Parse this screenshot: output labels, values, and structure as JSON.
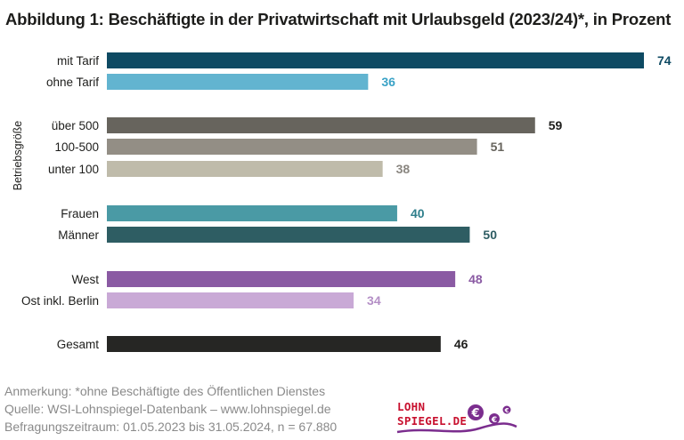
{
  "title": "Abbildung 1:  Beschäftigte in der Privatwirtschaft mit Urlaubsgeld (2023/24)*, in Prozent",
  "chart_data": {
    "type": "bar",
    "orientation": "horizontal",
    "xlim": [
      0,
      74
    ],
    "group_axis_label": "Betriebsgröße",
    "bars": [
      {
        "label": "mit Tarif",
        "value": 74,
        "color": "#0e4a63",
        "labelColor": "#0e4a63"
      },
      {
        "label": "ohne Tarif",
        "value": 36,
        "color": "#62b4d0",
        "labelColor": "#3aa2c6"
      },
      {
        "label": "über 500",
        "value": 59,
        "color": "#67645d",
        "labelColor": "#1d1d1b"
      },
      {
        "label": "100-500",
        "value": 51,
        "color": "#938e85",
        "labelColor": "#67645d"
      },
      {
        "label": "unter 100",
        "value": 38,
        "color": "#bfbbaa",
        "labelColor": "#8a8680"
      },
      {
        "label": "Frauen",
        "value": 40,
        "color": "#4a9aa5",
        "labelColor": "#2f7f8c"
      },
      {
        "label": "Männer",
        "value": 50,
        "color": "#2e5d63",
        "labelColor": "#2e5d63"
      },
      {
        "label": "West",
        "value": 48,
        "color": "#8a5aa3",
        "labelColor": "#8a5aa3"
      },
      {
        "label": "Ost inkl. Berlin",
        "value": 34,
        "color": "#c9a9d6",
        "labelColor": "#b48fc6"
      },
      {
        "label": "Gesamt",
        "value": 46,
        "color": "#262624",
        "labelColor": "#1d1d1b"
      }
    ]
  },
  "footer": {
    "note": "Anmerkung: *ohne Beschäftigte des Öffentlichen Dienstes",
    "source": "Quelle:  WSI-Lohnspiegel-Datenbank – www.lohnspiegel.de",
    "period": "Befragungszeitraum: 01.05.2023 bis 31.05.2024, n = 67.880"
  },
  "logo": {
    "line1": "LOHN",
    "line2": "SPIEGEL.DE",
    "symbol": "€"
  },
  "colors": {
    "logo_red": "#c8102e",
    "logo_purple": "#7b2d8e"
  }
}
